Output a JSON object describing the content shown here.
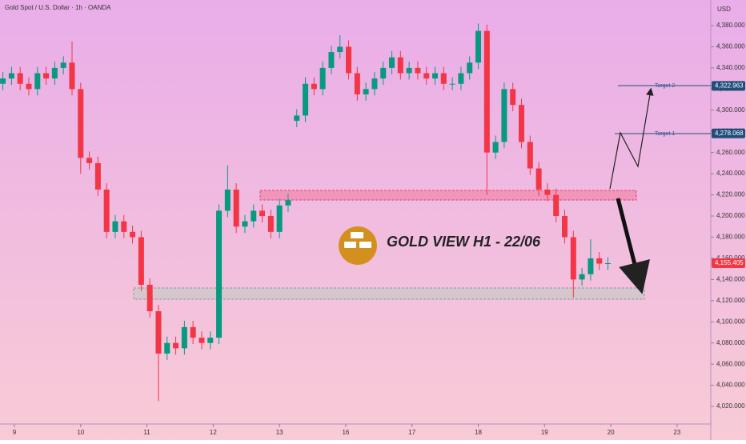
{
  "header": "Gold Spot / U.S. Dollar · 1h · OANDA",
  "currency": "USD",
  "chart_data": {
    "type": "candlestick",
    "title": "GOLD VIEW H1 - 22/06",
    "x": [
      -4,
      -1,
      2,
      5,
      8,
      11,
      14,
      17,
      20,
      23,
      26,
      29,
      32,
      35,
      38,
      41,
      44,
      47,
      50,
      53,
      56,
      59,
      62,
      65,
      68,
      71,
      74,
      77,
      80,
      83,
      86,
      89,
      92,
      95,
      98,
      101,
      104,
      107,
      110,
      113,
      116,
      119,
      122,
      125,
      128,
      131,
      134,
      137,
      140,
      143,
      146,
      149,
      152,
      155,
      158,
      161,
      164,
      167,
      170,
      173,
      176,
      179,
      182,
      185,
      188,
      191,
      194,
      197,
      200,
      203,
      206
    ],
    "open": [
      4325,
      4330,
      4335,
      4325,
      4320,
      4335,
      4330,
      4340,
      4345,
      4320,
      4255,
      4250,
      4225,
      4185,
      4195,
      4185,
      4180,
      4135,
      4110,
      4070,
      4080,
      4075,
      4095,
      4085,
      4080,
      4085,
      4205,
      4225,
      4190,
      4195,
      4205,
      4200,
      4185,
      4210,
      4290,
      4295,
      4325,
      4320,
      4340,
      4355,
      4360,
      4335,
      4315,
      4320,
      4330,
      4340,
      4350,
      4335,
      4340,
      4335,
      4330,
      4335,
      4325,
      4325,
      4335,
      4345,
      4375,
      4260,
      4270,
      4320,
      4305,
      4270,
      4245,
      4225,
      4220,
      4200,
      4180,
      4140,
      4145,
      4160,
      4155
    ],
    "high": [
      4336,
      4341,
      4341,
      4331,
      4341,
      4341,
      4346,
      4351,
      4365,
      4326,
      4261,
      4256,
      4231,
      4201,
      4201,
      4191,
      4186,
      4141,
      4116,
      4086,
      4086,
      4101,
      4101,
      4091,
      4091,
      4211,
      4248,
      4231,
      4201,
      4211,
      4211,
      4206,
      4216,
      4221,
      4301,
      4331,
      4331,
      4346,
      4361,
      4371,
      4366,
      4341,
      4326,
      4336,
      4346,
      4356,
      4356,
      4346,
      4346,
      4341,
      4341,
      4341,
      4331,
      4341,
      4351,
      4382,
      4381,
      4276,
      4326,
      4326,
      4311,
      4276,
      4251,
      4231,
      4226,
      4206,
      4186,
      4151,
      4178,
      4166,
      4161
    ],
    "low": [
      4319,
      4324,
      4319,
      4314,
      4314,
      4324,
      4324,
      4334,
      4314,
      4240,
      4244,
      4219,
      4179,
      4179,
      4179,
      4174,
      4129,
      4104,
      4025,
      4064,
      4069,
      4069,
      4079,
      4074,
      4074,
      4079,
      4199,
      4184,
      4184,
      4189,
      4194,
      4179,
      4179,
      4204,
      4284,
      4289,
      4314,
      4314,
      4334,
      4349,
      4329,
      4309,
      4309,
      4314,
      4324,
      4334,
      4329,
      4329,
      4329,
      4324,
      4324,
      4319,
      4319,
      4319,
      4329,
      4339,
      4220,
      4254,
      4264,
      4299,
      4264,
      4239,
      4219,
      4214,
      4194,
      4174,
      4123,
      4134,
      4139,
      4149,
      4149
    ],
    "close": [
      4330,
      4335,
      4325,
      4320,
      4335,
      4330,
      4340,
      4345,
      4320,
      4255,
      4250,
      4225,
      4185,
      4195,
      4185,
      4180,
      4135,
      4110,
      4070,
      4080,
      4075,
      4095,
      4085,
      4080,
      4085,
      4205,
      4225,
      4190,
      4195,
      4205,
      4200,
      4185,
      4210,
      4215,
      4295,
      4325,
      4320,
      4340,
      4355,
      4360,
      4335,
      4315,
      4320,
      4330,
      4340,
      4350,
      4335,
      4340,
      4335,
      4330,
      4335,
      4325,
      4325,
      4335,
      4345,
      4375,
      4260,
      4270,
      4320,
      4305,
      4270,
      4245,
      4225,
      4220,
      4200,
      4180,
      4140,
      4145,
      4160,
      4155,
      4155.405
    ],
    "up_color": "#089981",
    "down_color": "#f23645",
    "xlim": [
      -5,
      241.7
    ],
    "xticks": [
      {
        "value": 0,
        "label": "9"
      },
      {
        "value": 23,
        "label": "10"
      },
      {
        "value": 46,
        "label": "11"
      },
      {
        "value": 69,
        "label": "12"
      },
      {
        "value": 92,
        "label": "13"
      },
      {
        "value": 115,
        "label": "16"
      },
      {
        "value": 138,
        "label": "17"
      },
      {
        "value": 161,
        "label": "18"
      },
      {
        "value": 184,
        "label": "19"
      },
      {
        "value": 207,
        "label": "20"
      },
      {
        "value": 230,
        "label": "23"
      }
    ],
    "ylim": [
      4003.4,
      4404.2
    ],
    "yticks": [
      {
        "value": 4020,
        "label": "4,020.000"
      },
      {
        "value": 4040,
        "label": "4,040.000"
      },
      {
        "value": 4060,
        "label": "4,060.000"
      },
      {
        "value": 4080,
        "label": "4,080.000"
      },
      {
        "value": 4100,
        "label": "4,100.000"
      },
      {
        "value": 4120,
        "label": "4,120.000"
      },
      {
        "value": 4140,
        "label": "4,140.000"
      },
      {
        "value": 4160,
        "label": "4,160.000"
      },
      {
        "value": 4180,
        "label": "4,180.000"
      },
      {
        "value": 4200,
        "label": "4,200.000"
      },
      {
        "value": 4220,
        "label": "4,220.000"
      },
      {
        "value": 4240,
        "label": "4,240.000"
      },
      {
        "value": 4260,
        "label": "4,260.000"
      },
      {
        "value": 4280,
        "label": "4,280.000"
      },
      {
        "value": 4300,
        "label": "4,300.000"
      },
      {
        "value": 4320,
        "label": "4,320.000"
      },
      {
        "value": 4340,
        "label": "4,340.000"
      },
      {
        "value": 4360,
        "label": "4,360.000"
      },
      {
        "value": 4380,
        "label": "4,380.000"
      }
    ],
    "price_labels": [
      {
        "value": 4322.963,
        "label": "4,322.963",
        "color": "#1f4e79"
      },
      {
        "value": 4278.068,
        "label": "4,278.068",
        "color": "#1f4e79"
      },
      {
        "value": 4155.405,
        "label": "4,155.405",
        "color": "#f23645"
      }
    ],
    "annotations": [
      "Target 2",
      "Target 1"
    ],
    "grid": false
  }
}
